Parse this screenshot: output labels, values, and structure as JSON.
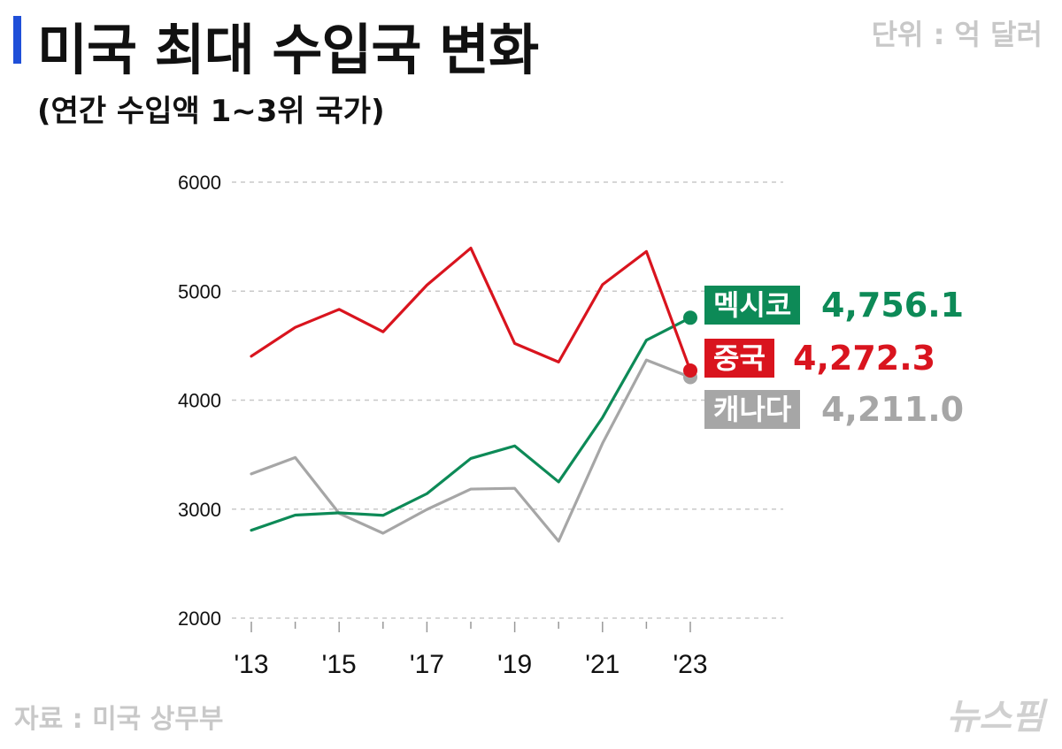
{
  "header": {
    "title": "미국 최대 수입국 변화",
    "subtitle": "(연간 수입액 1~3위 국가)",
    "unit": "단위 : 억 달러"
  },
  "footer": {
    "source": "자료 : 미국 상무부",
    "logo": "뉴스핌"
  },
  "colors": {
    "accent_bar": "#1f4fd8",
    "mexico": "#0d8a57",
    "china": "#d9141e",
    "canada": "#a6a6a6",
    "grid": "#c8c8c8"
  },
  "chart_data": {
    "type": "line",
    "x": [
      2013,
      2014,
      2015,
      2016,
      2017,
      2018,
      2019,
      2020,
      2021,
      2022,
      2023
    ],
    "x_tick_labels": [
      "'13",
      "'15",
      "'17",
      "'19",
      "'21",
      "'23"
    ],
    "y_ticks": [
      2000,
      3000,
      4000,
      5000,
      6000
    ],
    "ylim": [
      2000,
      6000
    ],
    "grid": true,
    "series": [
      {
        "name": "중국",
        "key": "china",
        "values": [
          4403,
          4668,
          4833,
          4627,
          5056,
          5395,
          4520,
          4350,
          5060,
          5364,
          4272.3
        ]
      },
      {
        "name": "멕시코",
        "key": "mexico",
        "values": [
          2806,
          2945,
          2966,
          2943,
          3142,
          3465,
          3580,
          3250,
          3840,
          4550,
          4756.1
        ]
      },
      {
        "name": "캐나다",
        "key": "canada",
        "values": [
          3324,
          3474,
          2961,
          2779,
          2997,
          3184,
          3191,
          2706,
          3603,
          4368,
          4211.0
        ]
      }
    ],
    "end_labels": [
      {
        "key": "mexico",
        "name": "멕시코",
        "value": "4,756.1"
      },
      {
        "key": "china",
        "name": "중국",
        "value": "4,272.3"
      },
      {
        "key": "canada",
        "name": "캐나다",
        "value": "4,211.0"
      }
    ]
  }
}
